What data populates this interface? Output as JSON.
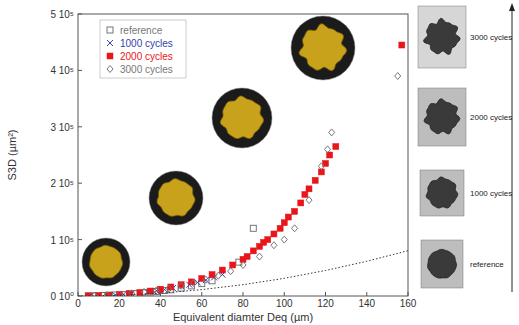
{
  "chart_data": {
    "type": "scatter",
    "x_label": "Equivalent diamter Deq (µm)",
    "y_label": "S3D (µm²)",
    "xlim": [
      0,
      160
    ],
    "ylim": [
      0,
      500000
    ],
    "xticks": [
      0,
      20,
      40,
      60,
      80,
      100,
      120,
      140,
      160
    ],
    "yticks": [
      {
        "value": 0,
        "label": "0 10⁰"
      },
      {
        "value": 100000,
        "label": "1 10⁵"
      },
      {
        "value": 200000,
        "label": "2 10⁵"
      },
      {
        "value": 300000,
        "label": "3 10⁵"
      },
      {
        "value": 400000,
        "label": "4 10⁵"
      },
      {
        "value": 500000,
        "label": "5 10⁵"
      }
    ],
    "legend": "upper-left",
    "annotations": [
      "3000 cycles",
      "2000 cycles",
      "1000 cycles",
      "reference"
    ],
    "series": [
      {
        "name": "reference",
        "color": "#777777",
        "marker": "square-open",
        "x": [
          5,
          8,
          12,
          15,
          18,
          22,
          25,
          28,
          32,
          35,
          38,
          42,
          45,
          50,
          55,
          60,
          65,
          78,
          85
        ],
        "values": [
          200,
          400,
          900,
          1300,
          1800,
          2600,
          3400,
          4300,
          5600,
          6800,
          8000,
          9800,
          11000,
          14000,
          18000,
          22000,
          27000,
          60000,
          120000
        ]
      },
      {
        "name": "1000 cycles",
        "color": "#3344aa",
        "marker": "x",
        "x": [
          6,
          10,
          14,
          18,
          22,
          26,
          30,
          34,
          38,
          42,
          46,
          50,
          54,
          58,
          62,
          66,
          70
        ],
        "values": [
          300,
          700,
          1300,
          2000,
          3000,
          4200,
          5500,
          7200,
          9200,
          11500,
          14000,
          17000,
          20000,
          24000,
          28000,
          33000,
          38000
        ]
      },
      {
        "name": "2000 cycles",
        "color": "#e8161b",
        "marker": "square",
        "x": [
          5,
          10,
          15,
          20,
          25,
          30,
          35,
          40,
          45,
          50,
          55,
          60,
          65,
          70,
          75,
          80,
          82,
          85,
          88,
          90,
          92,
          95,
          98,
          100,
          102,
          105,
          108,
          110,
          112,
          115,
          118,
          120,
          122,
          125,
          157
        ],
        "values": [
          200,
          700,
          1500,
          2600,
          4200,
          6200,
          8800,
          12000,
          16000,
          20000,
          25000,
          31000,
          38000,
          46000,
          55000,
          65000,
          70000,
          80000,
          88000,
          95000,
          100000,
          110000,
          120000,
          130000,
          140000,
          150000,
          165000,
          180000,
          190000,
          205000,
          220000,
          235000,
          250000,
          265000,
          445000
        ]
      },
      {
        "name": "3000 cycles",
        "color": "#777777",
        "marker": "diamond-open",
        "x": [
          8,
          14,
          20,
          26,
          32,
          38,
          44,
          50,
          56,
          62,
          68,
          74,
          80,
          88,
          95,
          100,
          105,
          112,
          118,
          121,
          123,
          155
        ],
        "values": [
          500,
          1400,
          2800,
          4800,
          7200,
          10000,
          13500,
          18000,
          23000,
          29000,
          36000,
          44000,
          55000,
          70000,
          90000,
          100000,
          120000,
          170000,
          230000,
          260000,
          290000,
          390000
        ]
      },
      {
        "type": "line",
        "color": "#333333",
        "line_style": "dotted",
        "x": [
          0,
          20,
          40,
          60,
          80,
          100,
          120,
          140,
          160
        ],
        "values": [
          0,
          1300,
          5000,
          11300,
          20100,
          31400,
          45200,
          61600,
          80400
        ]
      }
    ]
  }
}
